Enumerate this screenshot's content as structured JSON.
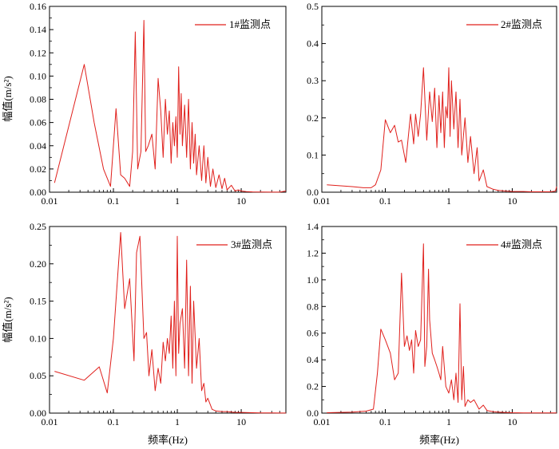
{
  "figure": {
    "x_axis_title": "频率(Hz)",
    "y_axis_title": "幅值(m/s²)",
    "line_color": "#e0201c"
  },
  "chart_data": [
    {
      "type": "line",
      "x_scale": "log",
      "xlim": [
        0.01,
        50
      ],
      "x_ticks": [
        0.01,
        0.1,
        1,
        10
      ],
      "x_tick_labels": [
        "0.01",
        "0.1",
        "1",
        "10"
      ],
      "ylim": [
        0,
        0.16
      ],
      "y_ticks": [
        0,
        0.02,
        0.04,
        0.06,
        0.08,
        0.1,
        0.12,
        0.14,
        0.16
      ],
      "y_tick_labels": [
        "0.00",
        "0.02",
        "0.04",
        "0.06",
        "0.08",
        "0.10",
        "0.12",
        "0.14",
        "0.16"
      ],
      "ylabel": "幅值(m/s²)",
      "xlabel": "",
      "legend": "top-right",
      "series": [
        {
          "name": "1#监测点",
          "x": [
            0.012,
            0.035,
            0.05,
            0.07,
            0.09,
            0.11,
            0.13,
            0.15,
            0.18,
            0.2,
            0.22,
            0.24,
            0.27,
            0.3,
            0.32,
            0.35,
            0.4,
            0.45,
            0.5,
            0.55,
            0.6,
            0.65,
            0.7,
            0.75,
            0.8,
            0.85,
            0.9,
            0.95,
            1.0,
            1.05,
            1.1,
            1.15,
            1.2,
            1.3,
            1.4,
            1.5,
            1.6,
            1.7,
            1.8,
            1.9,
            2.0,
            2.2,
            2.4,
            2.6,
            2.8,
            3.0,
            3.3,
            3.6,
            4.0,
            4.5,
            5.0,
            5.5,
            6.0,
            7.0,
            8.0,
            9.0,
            10,
            12,
            15,
            20,
            30,
            40,
            50
          ],
          "y": [
            0.008,
            0.11,
            0.06,
            0.02,
            0.005,
            0.072,
            0.015,
            0.012,
            0.005,
            0.035,
            0.138,
            0.02,
            0.035,
            0.148,
            0.035,
            0.04,
            0.05,
            0.02,
            0.098,
            0.07,
            0.03,
            0.08,
            0.05,
            0.07,
            0.025,
            0.06,
            0.04,
            0.065,
            0.03,
            0.108,
            0.05,
            0.085,
            0.04,
            0.075,
            0.03,
            0.08,
            0.02,
            0.06,
            0.025,
            0.05,
            0.015,
            0.04,
            0.01,
            0.04,
            0.008,
            0.03,
            0.005,
            0.02,
            0.004,
            0.015,
            0.003,
            0.012,
            0.002,
            0.006,
            0.001,
            0.002,
            0.001,
            0.0005,
            0.0003,
            0.0002,
            0.0001,
            0.0001,
            0.001
          ]
        }
      ]
    },
    {
      "type": "line",
      "x_scale": "log",
      "xlim": [
        0.01,
        50
      ],
      "x_ticks": [
        0.01,
        0.1,
        1,
        10
      ],
      "x_tick_labels": [
        "0.01",
        "0.1",
        "1",
        "10"
      ],
      "ylim": [
        0,
        0.5
      ],
      "y_ticks": [
        0,
        0.1,
        0.2,
        0.3,
        0.4,
        0.5
      ],
      "y_tick_labels": [
        "0.0",
        "0.1",
        "0.2",
        "0.3",
        "0.4",
        "0.5"
      ],
      "ylabel": "",
      "xlabel": "",
      "legend": "top-right",
      "series": [
        {
          "name": "2#监测点",
          "x": [
            0.012,
            0.03,
            0.045,
            0.06,
            0.07,
            0.085,
            0.1,
            0.12,
            0.14,
            0.16,
            0.18,
            0.21,
            0.25,
            0.28,
            0.3,
            0.33,
            0.36,
            0.4,
            0.45,
            0.5,
            0.55,
            0.6,
            0.65,
            0.7,
            0.75,
            0.8,
            0.85,
            0.9,
            0.95,
            1.0,
            1.05,
            1.1,
            1.2,
            1.3,
            1.4,
            1.5,
            1.6,
            1.8,
            2.0,
            2.2,
            2.5,
            2.8,
            3.0,
            3.5,
            4.0,
            5.0,
            6.0,
            8.0,
            10,
            15,
            20,
            30,
            40,
            48,
            50
          ],
          "y": [
            0.02,
            0.015,
            0.012,
            0.012,
            0.02,
            0.06,
            0.195,
            0.16,
            0.18,
            0.135,
            0.14,
            0.08,
            0.21,
            0.13,
            0.21,
            0.15,
            0.21,
            0.335,
            0.14,
            0.27,
            0.19,
            0.28,
            0.12,
            0.26,
            0.16,
            0.27,
            0.12,
            0.23,
            0.2,
            0.335,
            0.15,
            0.3,
            0.17,
            0.27,
            0.12,
            0.25,
            0.1,
            0.2,
            0.08,
            0.15,
            0.05,
            0.12,
            0.03,
            0.06,
            0.015,
            0.008,
            0.005,
            0.003,
            0.002,
            0.002,
            0.001,
            0.001,
            0.001,
            0.003,
            0.015
          ]
        }
      ]
    },
    {
      "type": "line",
      "x_scale": "log",
      "xlim": [
        0.01,
        50
      ],
      "x_ticks": [
        0.01,
        0.1,
        1,
        10
      ],
      "x_tick_labels": [
        "0.01",
        "0.1",
        "1",
        "10"
      ],
      "ylim": [
        0,
        0.25
      ],
      "y_ticks": [
        0,
        0.05,
        0.1,
        0.15,
        0.2,
        0.25
      ],
      "y_tick_labels": [
        "0.00",
        "0.05",
        "0.10",
        "0.15",
        "0.20",
        "0.25"
      ],
      "ylabel": "幅值(m/s²)",
      "xlabel": "频率(Hz)",
      "legend": "top-right",
      "series": [
        {
          "name": "3#监测点",
          "x": [
            0.012,
            0.035,
            0.06,
            0.08,
            0.1,
            0.13,
            0.15,
            0.18,
            0.21,
            0.23,
            0.26,
            0.3,
            0.33,
            0.36,
            0.4,
            0.45,
            0.5,
            0.55,
            0.6,
            0.65,
            0.7,
            0.75,
            0.8,
            0.85,
            0.9,
            0.95,
            1.0,
            1.05,
            1.1,
            1.2,
            1.3,
            1.4,
            1.5,
            1.6,
            1.7,
            1.8,
            2.0,
            2.2,
            2.4,
            2.6,
            2.8,
            3.0,
            3.5,
            4.0,
            5.0,
            6.0,
            8.0,
            10,
            15,
            20,
            30,
            40,
            50
          ],
          "y": [
            0.056,
            0.044,
            0.062,
            0.027,
            0.1,
            0.242,
            0.14,
            0.18,
            0.07,
            0.215,
            0.237,
            0.1,
            0.108,
            0.05,
            0.085,
            0.03,
            0.06,
            0.04,
            0.095,
            0.07,
            0.1,
            0.08,
            0.13,
            0.06,
            0.15,
            0.05,
            0.237,
            0.08,
            0.12,
            0.14,
            0.06,
            0.205,
            0.05,
            0.17,
            0.04,
            0.15,
            0.06,
            0.1,
            0.03,
            0.04,
            0.015,
            0.02,
            0.005,
            0.003,
            0.002,
            0.002,
            0.001,
            0.001,
            0.0005,
            0.0003,
            0.0002,
            0.0001,
            0.0001
          ]
        }
      ]
    },
    {
      "type": "line",
      "x_scale": "log",
      "xlim": [
        0.01,
        50
      ],
      "x_ticks": [
        0.01,
        0.1,
        1,
        10
      ],
      "x_tick_labels": [
        "0.01",
        "0.1",
        "1",
        "10"
      ],
      "ylim": [
        0,
        1.4
      ],
      "y_ticks": [
        0,
        0.2,
        0.4,
        0.6,
        0.8,
        1.0,
        1.2,
        1.4
      ],
      "y_tick_labels": [
        "0.0",
        "0.2",
        "0.4",
        "0.6",
        "0.8",
        "1.0",
        "1.2",
        "1.4"
      ],
      "ylabel": "",
      "xlabel": "频率(Hz)",
      "legend": "top-right",
      "series": [
        {
          "name": "4#监测点",
          "x": [
            0.012,
            0.03,
            0.05,
            0.065,
            0.075,
            0.085,
            0.1,
            0.12,
            0.14,
            0.16,
            0.18,
            0.2,
            0.22,
            0.24,
            0.26,
            0.28,
            0.3,
            0.33,
            0.36,
            0.4,
            0.42,
            0.45,
            0.48,
            0.5,
            0.55,
            0.6,
            0.65,
            0.7,
            0.75,
            0.8,
            0.9,
            1.0,
            1.1,
            1.2,
            1.3,
            1.4,
            1.5,
            1.6,
            1.7,
            1.8,
            2.0,
            2.2,
            2.5,
            3.0,
            3.5,
            4.0,
            5.0,
            6.0,
            8.0,
            10,
            15,
            20,
            30,
            40,
            50
          ],
          "y": [
            0.003,
            0.008,
            0.015,
            0.03,
            0.3,
            0.63,
            0.55,
            0.45,
            0.25,
            0.3,
            1.05,
            0.5,
            0.58,
            0.47,
            0.55,
            0.3,
            0.62,
            0.5,
            0.55,
            1.27,
            0.35,
            0.5,
            1.08,
            0.7,
            0.45,
            0.4,
            0.35,
            0.3,
            0.25,
            0.5,
            0.2,
            0.15,
            0.25,
            0.1,
            0.3,
            0.08,
            0.82,
            0.1,
            0.35,
            0.05,
            0.1,
            0.08,
            0.1,
            0.03,
            0.06,
            0.02,
            0.01,
            0.008,
            0.005,
            0.003,
            0.002,
            0.002,
            0.001,
            0.001,
            0.001
          ]
        }
      ]
    }
  ]
}
